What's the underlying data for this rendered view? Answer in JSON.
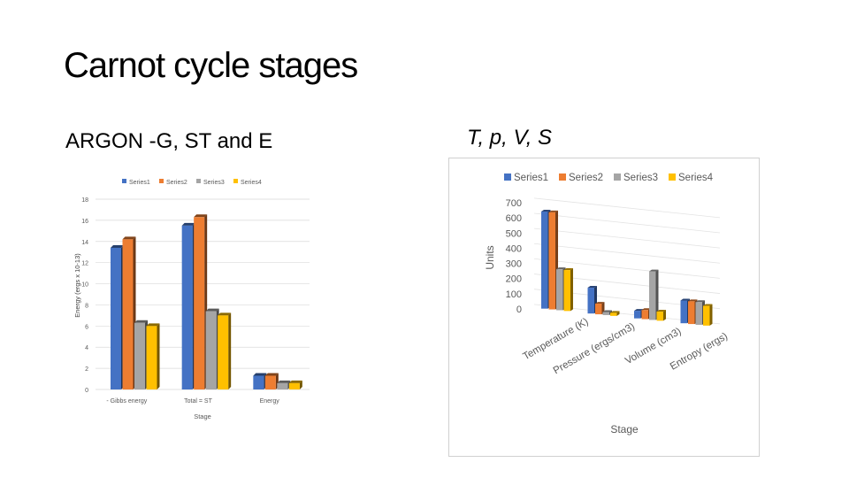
{
  "slide": {
    "title": "Carnot cycle stages",
    "left_heading": "ARGON  -G, ST and E",
    "right_heading": "T, p, V, S"
  },
  "chart_data": [
    {
      "type": "bar",
      "categories": [
        "- Gibbs energy",
        "Total = ST",
        "Energy"
      ],
      "series": [
        {
          "name": "Series1",
          "values": [
            13.4,
            15.5,
            1.3
          ]
        },
        {
          "name": "Series2",
          "values": [
            14.2,
            16.3,
            1.3
          ]
        },
        {
          "name": "Series3",
          "values": [
            6.3,
            7.4,
            0.6
          ]
        },
        {
          "name": "Series4",
          "values": [
            6.0,
            7.0,
            0.6
          ]
        }
      ],
      "xlabel": "Stage",
      "ylabel": "Energy (ergs x 10-13)",
      "ylim": [
        0,
        18
      ],
      "yticks": [
        "0",
        "2",
        "4",
        "6",
        "8",
        "10",
        "12",
        "14",
        "16",
        "18"
      ],
      "legend": "top",
      "colors": [
        "#4472C4",
        "#ED7D31",
        "#A5A5A5",
        "#FFC000"
      ]
    },
    {
      "type": "bar",
      "categories": [
        "Temperature (K)",
        "Pressure (ergs/cm3)",
        "Volume (cm3)",
        "Entropy (ergs)"
      ],
      "series": [
        {
          "name": "Series1",
          "values": [
            640,
            170,
            50,
            150
          ]
        },
        {
          "name": "Series2",
          "values": [
            640,
            70,
            60,
            150
          ]
        },
        {
          "name": "Series3",
          "values": [
            270,
            20,
            320,
            150
          ]
        },
        {
          "name": "Series4",
          "values": [
            270,
            20,
            60,
            130
          ]
        }
      ],
      "xlabel": "Stage",
      "ylabel": "Units",
      "ylim": [
        0,
        700
      ],
      "yticks": [
        "0",
        "100",
        "200",
        "300",
        "400",
        "500",
        "600",
        "700"
      ],
      "legend": "top",
      "colors": [
        "#4472C4",
        "#ED7D31",
        "#A5A5A5",
        "#FFC000"
      ]
    }
  ]
}
